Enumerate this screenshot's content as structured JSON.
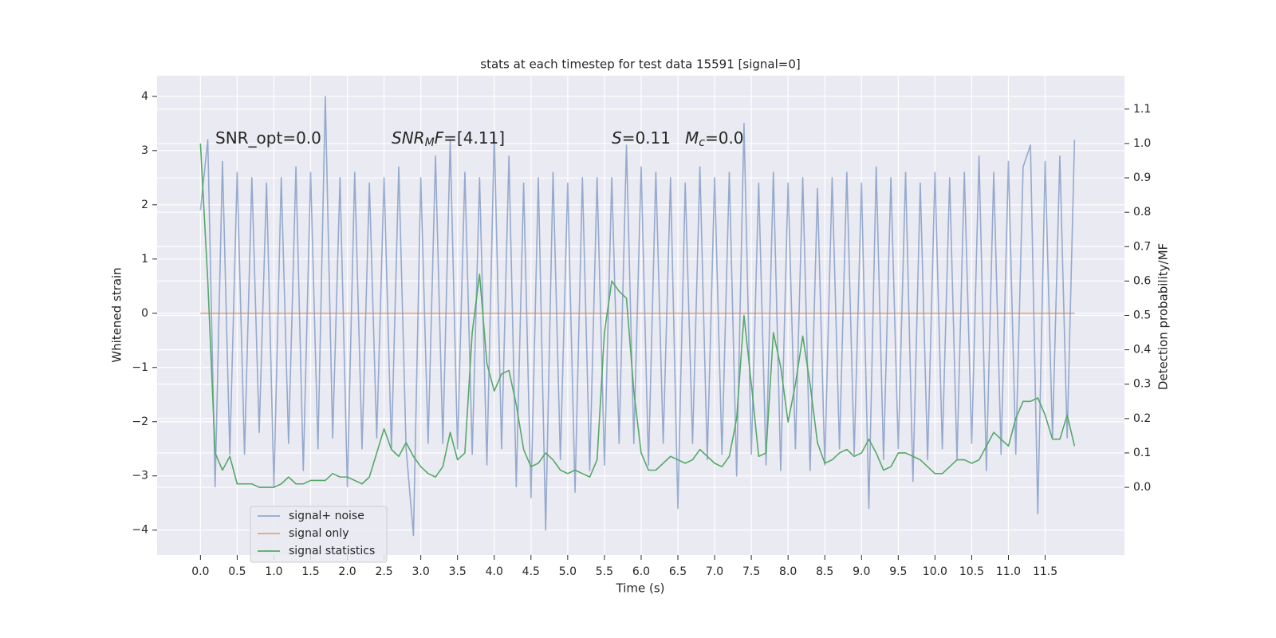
{
  "chart_data": {
    "type": "line",
    "title": "stats at each timestep for test data 15591 [signal=0]",
    "x_label": "Time (s)",
    "y_label": "Whitened strain",
    "y2_label": "Detection probability/MF",
    "annotations": [
      {
        "parts": [
          "SNR_opt=0.0"
        ]
      },
      {
        "parts": [
          "SNR",
          "M",
          "F",
          "=[4.11]"
        ]
      },
      {
        "parts": [
          "S",
          "=0.11"
        ]
      },
      {
        "parts": [
          "M",
          "c",
          "=0.0"
        ]
      }
    ],
    "grid": true,
    "legend": "lower left",
    "x": [
      0,
      0.1,
      0.2,
      0.3,
      0.4,
      0.5,
      0.6,
      0.7,
      0.8,
      0.9,
      1,
      1.1,
      1.2,
      1.3,
      1.4,
      1.5,
      1.6,
      1.7,
      1.8,
      1.9,
      2,
      2.1,
      2.2,
      2.3,
      2.4,
      2.5,
      2.6,
      2.7,
      2.8,
      2.9,
      3,
      3.1,
      3.2,
      3.3,
      3.4,
      3.5,
      3.6,
      3.7,
      3.8,
      3.9,
      4,
      4.1,
      4.2,
      4.3,
      4.4,
      4.5,
      4.6,
      4.7,
      4.8,
      4.9,
      5,
      5.1,
      5.2,
      5.3,
      5.4,
      5.5,
      5.6,
      5.7,
      5.8,
      5.9,
      6,
      6.1,
      6.2,
      6.3,
      6.4,
      6.5,
      6.6,
      6.7,
      6.8,
      6.9,
      7,
      7.1,
      7.2,
      7.3,
      7.4,
      7.5,
      7.6,
      7.7,
      7.8,
      7.9,
      8,
      8.1,
      8.2,
      8.3,
      8.4,
      8.5,
      8.6,
      8.7,
      8.8,
      8.9,
      9,
      9.1,
      9.2,
      9.3,
      9.4,
      9.5,
      9.6,
      9.7,
      9.8,
      9.9,
      10,
      10.1,
      10.2,
      10.3,
      10.4,
      10.5,
      10.6,
      10.7,
      10.8,
      10.9,
      11,
      11.1,
      11.2,
      11.3,
      11.4,
      11.5,
      11.6,
      11.7,
      11.8,
      11.9
    ],
    "series": [
      {
        "name": "signal+ noise",
        "color": "#4c72b0",
        "alpha": 0.55,
        "axis": "y",
        "values": [
          1.9,
          3.2,
          -3.2,
          2.8,
          -2.6,
          2.6,
          -2.6,
          2.5,
          -2.2,
          2.4,
          -3.2,
          2.5,
          -2.4,
          2.7,
          -2.9,
          2.6,
          -2.5,
          4.0,
          -2.3,
          2.5,
          -3.2,
          2.6,
          -2.5,
          2.4,
          -2.3,
          2.5,
          -2.5,
          2.7,
          -2.5,
          -4.1,
          2.5,
          -2.4,
          2.9,
          -2.4,
          3.2,
          -2.5,
          2.6,
          -2.6,
          2.5,
          -2.8,
          3.3,
          -2.5,
          2.9,
          -3.2,
          2.4,
          -3.4,
          2.5,
          -4.0,
          2.6,
          -2.7,
          2.4,
          -3.3,
          2.5,
          -2.9,
          2.5,
          -2.8,
          2.5,
          -2.4,
          3.1,
          -2.4,
          2.7,
          -2.8,
          2.6,
          -2.4,
          2.5,
          -3.6,
          2.4,
          -2.4,
          2.7,
          -2.7,
          2.5,
          -2.6,
          2.6,
          -3.0,
          3.5,
          -2.6,
          2.4,
          -2.8,
          2.6,
          -2.9,
          2.4,
          -2.5,
          2.5,
          -2.9,
          2.3,
          -2.8,
          2.5,
          -2.5,
          2.6,
          -2.6,
          2.4,
          -3.6,
          2.7,
          -2.7,
          2.5,
          -2.5,
          2.6,
          -3.1,
          2.4,
          -2.7,
          2.6,
          -2.5,
          2.5,
          -2.7,
          2.6,
          -2.4,
          2.9,
          -2.9,
          2.6,
          -2.6,
          2.8,
          -2.6,
          2.7,
          3.1,
          -3.7,
          2.8,
          -2.3,
          2.9,
          -2.3,
          3.2
        ]
      },
      {
        "name": "signal only",
        "color": "#dd8452",
        "alpha": 0.7,
        "axis": "y",
        "values": [
          0,
          0,
          0,
          0,
          0,
          0,
          0,
          0,
          0,
          0,
          0,
          0,
          0,
          0,
          0,
          0,
          0,
          0,
          0,
          0,
          0,
          0,
          0,
          0,
          0,
          0,
          0,
          0,
          0,
          0,
          0,
          0,
          0,
          0,
          0,
          0,
          0,
          0,
          0,
          0,
          0,
          0,
          0,
          0,
          0,
          0,
          0,
          0,
          0,
          0,
          0,
          0,
          0,
          0,
          0,
          0,
          0,
          0,
          0,
          0,
          0,
          0,
          0,
          0,
          0,
          0,
          0,
          0,
          0,
          0,
          0,
          0,
          0,
          0,
          0,
          0,
          0,
          0,
          0,
          0,
          0,
          0,
          0,
          0,
          0,
          0,
          0,
          0,
          0,
          0,
          0,
          0,
          0,
          0,
          0,
          0,
          0,
          0,
          0,
          0,
          0,
          0,
          0,
          0,
          0,
          0,
          0,
          0,
          0,
          0,
          0,
          0,
          0,
          0,
          0,
          0,
          0,
          0,
          0,
          0
        ]
      },
      {
        "name": "signal statistics",
        "color": "#55a868",
        "alpha": 1,
        "axis": "y2",
        "values": [
          1.0,
          0.6,
          0.1,
          0.05,
          0.09,
          0.01,
          0.01,
          0.01,
          0.0,
          0.0,
          0.0,
          0.01,
          0.03,
          0.01,
          0.01,
          0.02,
          0.02,
          0.02,
          0.04,
          0.03,
          0.03,
          0.02,
          0.01,
          0.03,
          0.1,
          0.17,
          0.11,
          0.09,
          0.13,
          0.09,
          0.06,
          0.04,
          0.03,
          0.06,
          0.16,
          0.08,
          0.1,
          0.45,
          0.62,
          0.36,
          0.28,
          0.33,
          0.34,
          0.24,
          0.11,
          0.06,
          0.07,
          0.1,
          0.08,
          0.05,
          0.04,
          0.05,
          0.04,
          0.03,
          0.08,
          0.45,
          0.6,
          0.57,
          0.55,
          0.28,
          0.1,
          0.05,
          0.05,
          0.07,
          0.09,
          0.08,
          0.07,
          0.08,
          0.11,
          0.09,
          0.07,
          0.06,
          0.09,
          0.2,
          0.5,
          0.3,
          0.09,
          0.1,
          0.45,
          0.35,
          0.19,
          0.3,
          0.44,
          0.3,
          0.13,
          0.07,
          0.08,
          0.1,
          0.11,
          0.09,
          0.1,
          0.14,
          0.1,
          0.05,
          0.06,
          0.1,
          0.1,
          0.09,
          0.08,
          0.06,
          0.04,
          0.04,
          0.06,
          0.08,
          0.08,
          0.07,
          0.08,
          0.12,
          0.16,
          0.14,
          0.12,
          0.2,
          0.25,
          0.25,
          0.26,
          0.21,
          0.14,
          0.14,
          0.21,
          0.12
        ]
      }
    ],
    "xlim": [
      -0.59,
      12.58
    ],
    "xticks": [
      {
        "value": 0,
        "label": "0.0"
      },
      0.5,
      {
        "value": 1,
        "label": "1.0"
      },
      1.5,
      {
        "value": 2,
        "label": "2.0"
      },
      2.5,
      {
        "value": 3,
        "label": "3.0"
      },
      3.5,
      {
        "value": 4,
        "label": "4.0"
      },
      4.5,
      {
        "value": 5,
        "label": "5.0"
      },
      5.5,
      {
        "value": 6,
        "label": "6.0"
      },
      6.5,
      {
        "value": 7,
        "label": "7.0"
      },
      7.5,
      {
        "value": 8,
        "label": "8.0"
      },
      8.5,
      {
        "value": 9,
        "label": "9.0"
      },
      9.5,
      {
        "value": 10,
        "label": "10.0"
      },
      10.5,
      {
        "value": 11,
        "label": "11.0"
      },
      11.5
    ],
    "ylim": [
      -4.46,
      4.38
    ],
    "yticks": [
      {
        "value": -4,
        "label": "−4"
      },
      {
        "value": -3,
        "label": "−3"
      },
      {
        "value": -2,
        "label": "−2"
      },
      {
        "value": -1,
        "label": "−1"
      },
      0,
      1,
      2,
      3,
      4
    ],
    "y2lim": [
      -0.197,
      1.197
    ],
    "y2ticks": [
      {
        "value": 0,
        "label": "0.0"
      },
      0.1,
      0.2,
      0.3,
      0.4,
      0.5,
      0.6,
      0.7,
      0.8,
      0.9,
      {
        "value": 1,
        "label": "1.0"
      },
      1.1
    ]
  }
}
